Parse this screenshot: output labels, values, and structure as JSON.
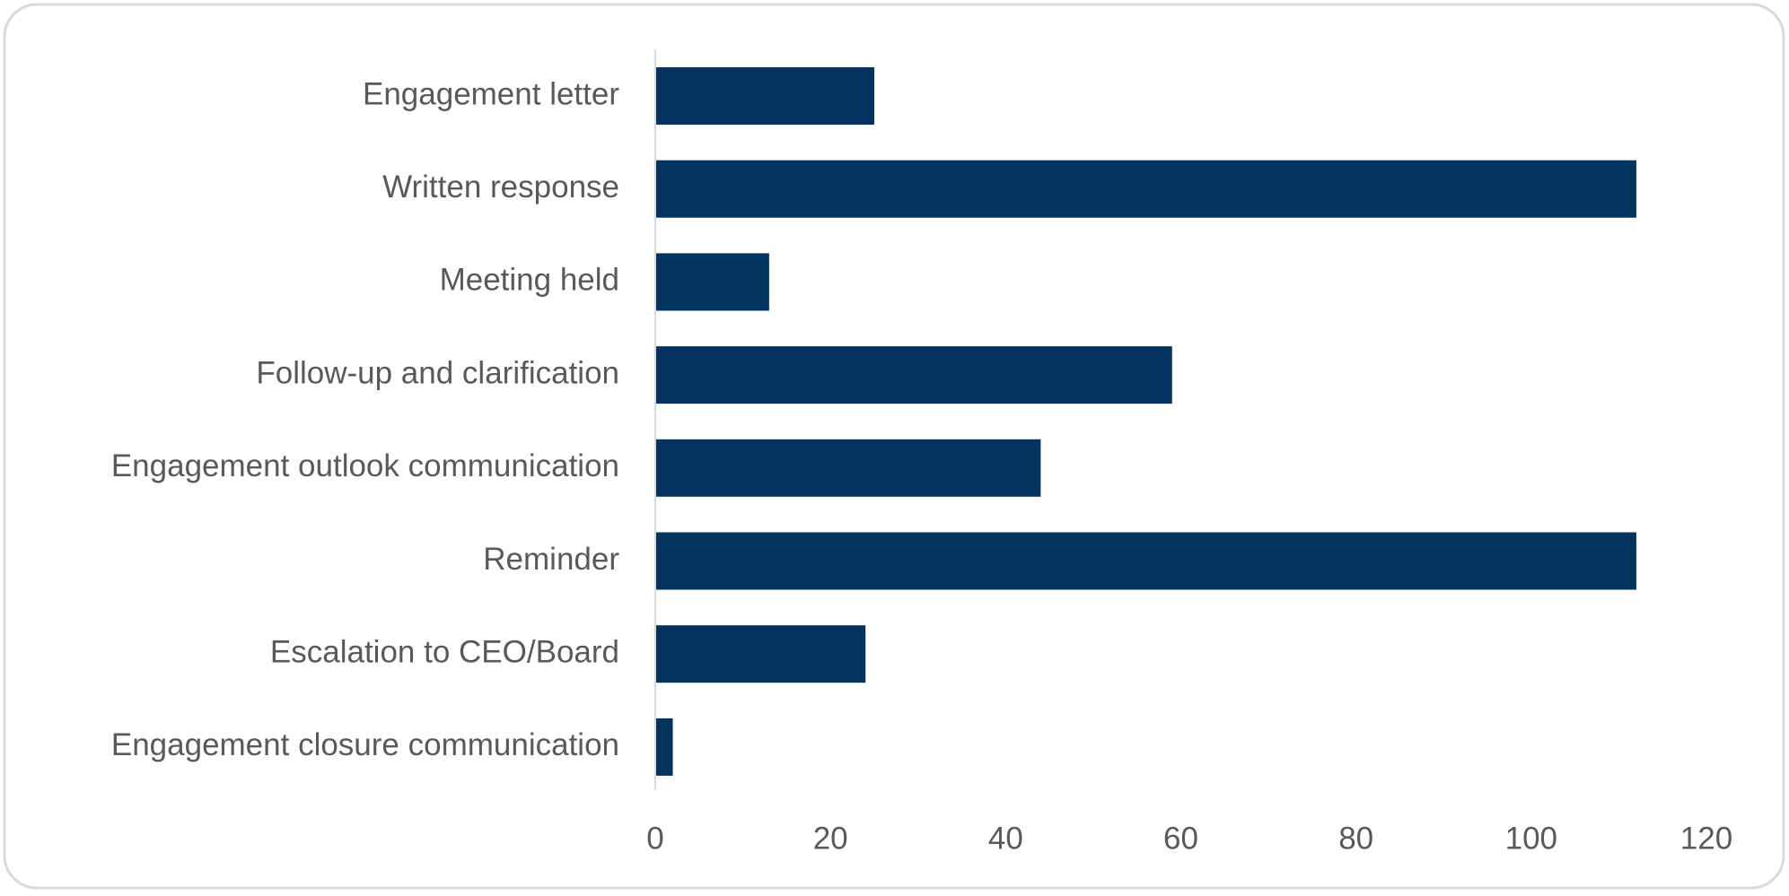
{
  "chart_data": {
    "type": "bar",
    "orientation": "horizontal",
    "categories": [
      "Engagement letter",
      "Written response",
      "Meeting held",
      "Follow-up and clarification",
      "Engagement outlook communication",
      "Reminder",
      "Escalation to CEO/Board",
      "Engagement closure communication"
    ],
    "values": [
      25,
      112,
      13,
      59,
      44,
      112,
      24,
      2
    ],
    "color": "#03345f",
    "xlim": [
      0,
      120
    ],
    "xticks": [
      0,
      20,
      40,
      60,
      80,
      100,
      120
    ],
    "grid": false
  }
}
